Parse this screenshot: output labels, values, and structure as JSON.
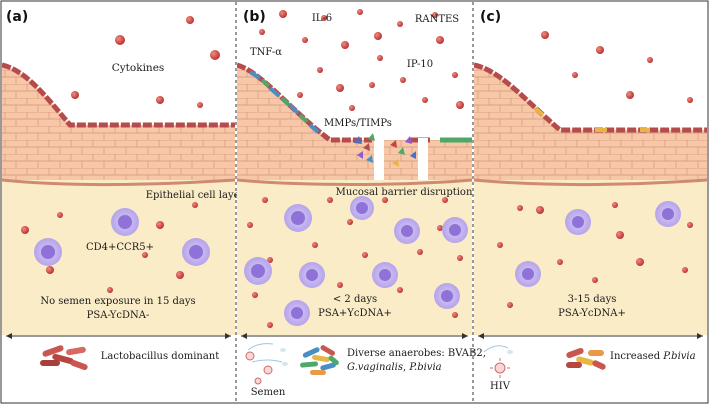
{
  "panels": [
    {
      "letter": "(a)",
      "cytokine_label": "Cytokines",
      "epithelial_label": "Epithelial cell layer",
      "cell_label": "CD4+CCR5+",
      "status_line1": "No semen exposure in 15 days",
      "status_line2": "PSA-YcDNA-",
      "microbiome": "Lactobacillus dominant"
    },
    {
      "letter": "(b)",
      "cytokines": [
        "IL-6",
        "RANTES",
        "TNF-α",
        "IP-10"
      ],
      "mmp_label": "MMPs/TIMPs",
      "barrier_label": "Mucosal barrier disruption",
      "status_line1": "< 2 days",
      "status_line2": "PSA+YcDNA+",
      "microbiome_line1": "Diverse anaerobes: BVAB2,",
      "microbiome_line2a": "G.vaginalis",
      "microbiome_line2sep": ", ",
      "microbiome_line2b": "P.bivia",
      "semen_label": "Semen"
    },
    {
      "letter": "(c)",
      "status_line1": "3-15 days",
      "status_line2": "PSA-YcDNA+",
      "microbiome_prefix": "Increased ",
      "microbiome_species": "P.bivia",
      "hiv_label": "HIV"
    }
  ],
  "colors": {
    "background": "#fbf1d6",
    "tissue": "#f9e6c6",
    "epithelium": "#f6c8a8",
    "cell_border": "#d08a72",
    "top_cell": "#b34a4a",
    "cytokine": "#c94545",
    "immune_outer": "#c6b6ef",
    "immune_inner": "#8f72d8",
    "lactobacillus": "#c9574f",
    "gardnerella": "#e8b645",
    "anaerobe_blue": "#4a8fc4",
    "anaerobe_green": "#4fa86a"
  }
}
